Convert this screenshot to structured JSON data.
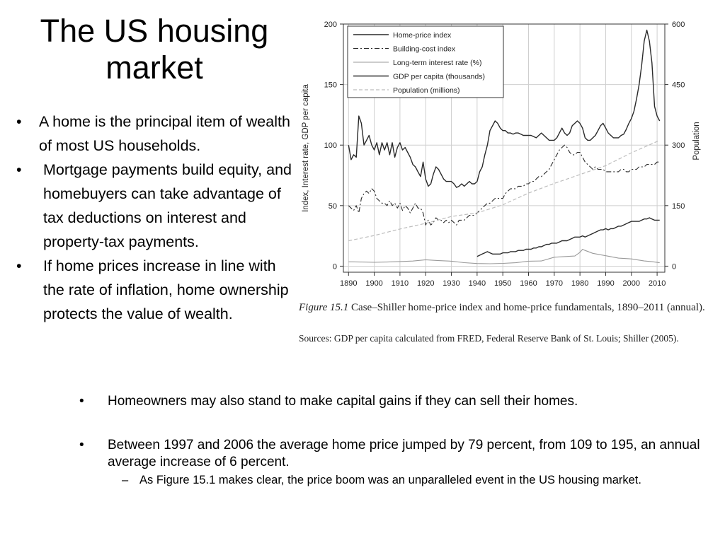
{
  "slide": {
    "title": "The US housing market",
    "left_bullets": [
      "A home is the principal item of wealth of most US households.",
      "Mortgage payments build equity, and homebuyers can take advantage of tax deductions on interest and property-tax payments.",
      "If home prices increase in line with the rate of inflation, home ownership protects the value of wealth."
    ],
    "bottom_bullets": [
      "Homeowners may also stand to make capital gains if they can sell their homes.",
      "Between  1997 and 2006 the average home price jumped by 79 percent, from 109 to 195, an annual average  increase of 6 percent."
    ],
    "sub_bullet": "As Figure 15.1 makes clear, the price boom was an unparalleled event in the  US housing market."
  },
  "figure": {
    "caption_number": "Figure 15.1",
    "caption_text": "Case–Shiller home-price index and home-price fundamentals, 1890–2011 (annual).",
    "sources": "Sources: GDP per capita calculated from FRED, Federal Reserve Bank of St. Louis; Shiller (2005)."
  },
  "chart_data": {
    "type": "line",
    "xlabel": "",
    "ylabel": "Index, Interest rate, GDP per capita",
    "y2label": "Population",
    "xlim": [
      1888,
      2013
    ],
    "ylim": [
      -5,
      200
    ],
    "y2lim": [
      -15,
      600
    ],
    "x_ticks": [
      1890,
      1900,
      1910,
      1920,
      1930,
      1940,
      1950,
      1960,
      1970,
      1980,
      1990,
      2000,
      2010
    ],
    "y_ticks": [
      0,
      50,
      100,
      150,
      200
    ],
    "y2_ticks": [
      0,
      150,
      300,
      450,
      600
    ],
    "grid": true,
    "legend_position": "top-left",
    "colors": {
      "home_price": "#2a2a2a",
      "building_cost": "#2a2a2a",
      "interest": "#9a9a9a",
      "gdp": "#2a2a2a",
      "population": "#bdbdbd"
    },
    "series": [
      {
        "name": "Home-price index",
        "axis": "left",
        "style": "solid",
        "x": [
          1890,
          1891,
          1892,
          1893,
          1894,
          1895,
          1896,
          1897,
          1898,
          1899,
          1900,
          1901,
          1902,
          1903,
          1904,
          1905,
          1906,
          1907,
          1908,
          1909,
          1910,
          1911,
          1912,
          1913,
          1914,
          1915,
          1916,
          1917,
          1918,
          1919,
          1920,
          1921,
          1922,
          1923,
          1924,
          1925,
          1926,
          1927,
          1928,
          1929,
          1930,
          1931,
          1932,
          1933,
          1934,
          1935,
          1936,
          1937,
          1938,
          1939,
          1940,
          1941,
          1942,
          1943,
          1944,
          1945,
          1946,
          1947,
          1948,
          1949,
          1950,
          1951,
          1952,
          1953,
          1954,
          1955,
          1956,
          1957,
          1958,
          1959,
          1960,
          1961,
          1962,
          1963,
          1964,
          1965,
          1966,
          1967,
          1968,
          1969,
          1970,
          1971,
          1972,
          1973,
          1974,
          1975,
          1976,
          1977,
          1978,
          1979,
          1980,
          1981,
          1982,
          1983,
          1984,
          1985,
          1986,
          1987,
          1988,
          1989,
          1990,
          1991,
          1992,
          1993,
          1994,
          1995,
          1996,
          1997,
          1998,
          1999,
          2000,
          2001,
          2002,
          2003,
          2004,
          2005,
          2006,
          2007,
          2008,
          2009,
          2010,
          2011
        ],
        "values": [
          100,
          88,
          92,
          90,
          124,
          118,
          100,
          104,
          108,
          100,
          96,
          102,
          92,
          102,
          96,
          102,
          92,
          102,
          90,
          98,
          102,
          96,
          98,
          94,
          90,
          84,
          82,
          78,
          74,
          86,
          72,
          66,
          68,
          76,
          82,
          80,
          76,
          72,
          70,
          70,
          70,
          68,
          65,
          66,
          68,
          66,
          68,
          70,
          68,
          68,
          70,
          78,
          82,
          92,
          100,
          112,
          116,
          120,
          118,
          114,
          112,
          112,
          110,
          110,
          109,
          110,
          110,
          109,
          108,
          108,
          108,
          108,
          107,
          106,
          108,
          110,
          108,
          106,
          104,
          104,
          104,
          106,
          110,
          114,
          110,
          108,
          110,
          116,
          118,
          120,
          118,
          114,
          106,
          104,
          104,
          106,
          108,
          112,
          116,
          118,
          114,
          110,
          108,
          106,
          106,
          106,
          108,
          109,
          113,
          118,
          122,
          128,
          138,
          150,
          166,
          186,
          195,
          186,
          168,
          132,
          124,
          120
        ]
      },
      {
        "name": "Building-cost index",
        "axis": "left",
        "style": "dashdot",
        "x": [
          1890,
          1891,
          1892,
          1893,
          1894,
          1895,
          1896,
          1897,
          1898,
          1899,
          1900,
          1901,
          1902,
          1903,
          1904,
          1905,
          1906,
          1907,
          1908,
          1909,
          1910,
          1911,
          1912,
          1913,
          1914,
          1915,
          1916,
          1917,
          1918,
          1919,
          1920,
          1921,
          1922,
          1923,
          1924,
          1925,
          1926,
          1927,
          1928,
          1929,
          1930,
          1931,
          1932,
          1933,
          1934,
          1935,
          1936,
          1937,
          1938,
          1939,
          1940,
          1941,
          1942,
          1943,
          1944,
          1945,
          1946,
          1947,
          1948,
          1949,
          1950,
          1951,
          1952,
          1953,
          1954,
          1955,
          1956,
          1957,
          1958,
          1959,
          1960,
          1961,
          1962,
          1963,
          1964,
          1965,
          1966,
          1967,
          1968,
          1969,
          1970,
          1971,
          1972,
          1973,
          1974,
          1975,
          1976,
          1977,
          1978,
          1979,
          1980,
          1981,
          1982,
          1983,
          1984,
          1985,
          1986,
          1987,
          1988,
          1989,
          1990,
          1991,
          1992,
          1993,
          1994,
          1995,
          1996,
          1997,
          1998,
          1999,
          2000,
          2001,
          2002,
          2003,
          2004,
          2005,
          2006,
          2007,
          2008,
          2009,
          2010,
          2011
        ],
        "values": [
          50,
          48,
          46,
          50,
          44,
          56,
          60,
          62,
          60,
          64,
          62,
          56,
          54,
          52,
          52,
          50,
          54,
          50,
          52,
          48,
          52,
          46,
          50,
          48,
          44,
          48,
          52,
          48,
          48,
          44,
          34,
          38,
          34,
          36,
          40,
          38,
          38,
          36,
          38,
          36,
          38,
          36,
          34,
          38,
          38,
          38,
          40,
          42,
          42,
          42,
          44,
          46,
          48,
          50,
          52,
          52,
          54,
          56,
          56,
          56,
          56,
          60,
          62,
          64,
          64,
          64,
          66,
          66,
          66,
          68,
          68,
          70,
          70,
          72,
          74,
          74,
          76,
          78,
          80,
          84,
          88,
          92,
          96,
          98,
          100,
          98,
          94,
          92,
          92,
          94,
          94,
          90,
          86,
          84,
          82,
          80,
          82,
          80,
          80,
          80,
          78,
          78,
          78,
          78,
          78,
          78,
          80,
          80,
          78,
          78,
          80,
          80,
          80,
          82,
          82,
          82,
          84,
          84,
          84,
          84,
          86,
          86
        ]
      },
      {
        "name": "Long-term interest rate (%)",
        "axis": "left",
        "style": "solid",
        "x": [
          1890,
          1895,
          1900,
          1905,
          1910,
          1915,
          1920,
          1925,
          1930,
          1935,
          1940,
          1945,
          1950,
          1955,
          1960,
          1965,
          1970,
          1975,
          1978,
          1980,
          1981,
          1982,
          1985,
          1990,
          1995,
          2000,
          2005,
          2008,
          2011
        ],
        "values": [
          3.6,
          3.4,
          3.2,
          3.4,
          3.8,
          4.2,
          5.3,
          4.6,
          4.1,
          2.9,
          2.2,
          2.0,
          2.3,
          2.8,
          4.1,
          4.3,
          7.4,
          8.0,
          8.4,
          11.4,
          13.9,
          13.0,
          10.6,
          8.6,
          6.6,
          6.0,
          4.3,
          3.7,
          2.8
        ]
      },
      {
        "name": "GDP per capita (thousands)",
        "axis": "left",
        "style": "solid",
        "x": [
          1940,
          1941,
          1942,
          1943,
          1944,
          1945,
          1946,
          1947,
          1948,
          1949,
          1950,
          1951,
          1952,
          1953,
          1954,
          1955,
          1956,
          1957,
          1958,
          1959,
          1960,
          1961,
          1962,
          1963,
          1964,
          1965,
          1966,
          1967,
          1968,
          1969,
          1970,
          1971,
          1972,
          1973,
          1974,
          1975,
          1976,
          1977,
          1978,
          1979,
          1980,
          1981,
          1982,
          1983,
          1984,
          1985,
          1986,
          1987,
          1988,
          1989,
          1990,
          1991,
          1992,
          1993,
          1994,
          1995,
          1996,
          1997,
          1998,
          1999,
          2000,
          2001,
          2002,
          2003,
          2004,
          2005,
          2006,
          2007,
          2008,
          2009,
          2010,
          2011
        ],
        "values": [
          8,
          9,
          10,
          11,
          12,
          11,
          10,
          10,
          10,
          10,
          11,
          11,
          11,
          12,
          12,
          12,
          13,
          13,
          13,
          14,
          14,
          14,
          15,
          15,
          16,
          16,
          17,
          18,
          18,
          19,
          19,
          19,
          20,
          21,
          21,
          21,
          22,
          23,
          24,
          24,
          24,
          25,
          24,
          25,
          26,
          27,
          28,
          29,
          30,
          30,
          31,
          30,
          31,
          31,
          32,
          33,
          33,
          34,
          35,
          36,
          37,
          37,
          37,
          37,
          38,
          39,
          39,
          40,
          39,
          38,
          38,
          38
        ]
      },
      {
        "name": "Population (millions)",
        "axis": "right",
        "style": "dashed",
        "x": [
          1890,
          1900,
          1910,
          1920,
          1930,
          1940,
          1950,
          1960,
          1970,
          1980,
          1990,
          2000,
          2010,
          2011
        ],
        "values": [
          63,
          76,
          92,
          106,
          123,
          132,
          152,
          181,
          205,
          227,
          249,
          281,
          309,
          312
        ]
      }
    ]
  }
}
